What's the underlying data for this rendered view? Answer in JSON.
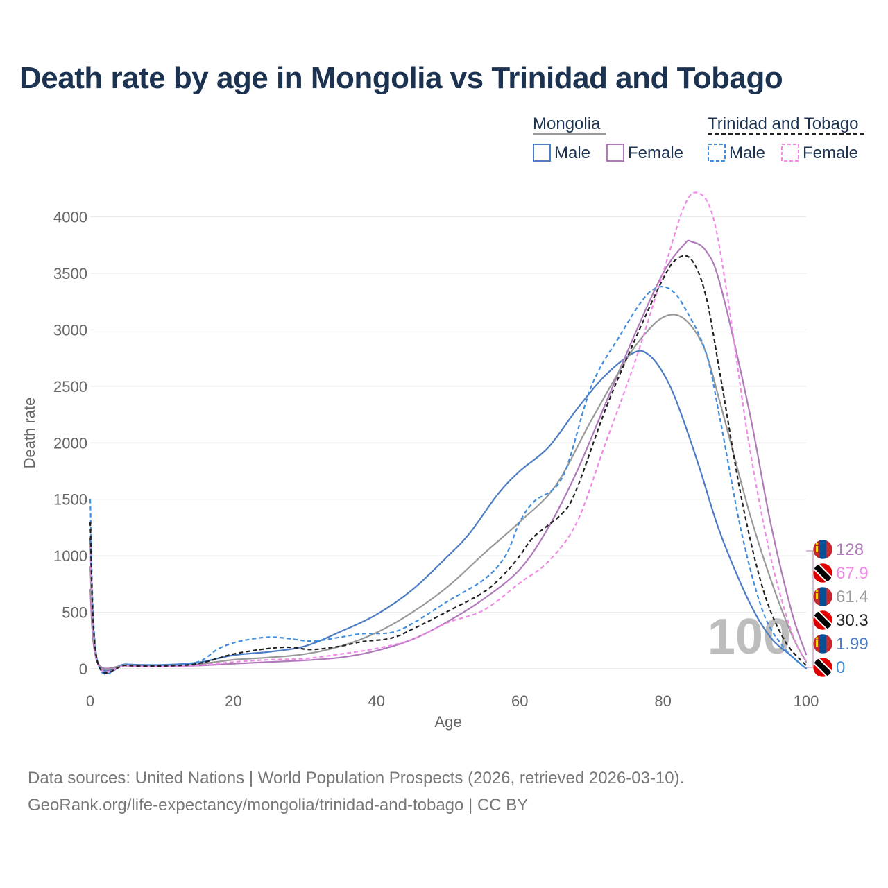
{
  "title": "Death rate by age in Mongolia vs Trinidad and Tobago",
  "footer": {
    "line1": "Data sources: United Nations | World Population Prospects (2026, retrieved 2026-03-10).",
    "line2": "GeoRank.org/life-expectancy/mongolia/trinidad-and-tobago | CC BY"
  },
  "legend": {
    "groups": [
      {
        "name": "Mongolia",
        "style": "solid",
        "entries": [
          "Male",
          "Female"
        ]
      },
      {
        "name": "Trinidad and Tobago",
        "style": "dashed",
        "entries": [
          "Male",
          "Female"
        ]
      }
    ]
  },
  "chart_data": {
    "type": "line",
    "title": "Death rate by age in Mongolia vs Trinidad and Tobago",
    "xlabel": "Age",
    "ylabel": "Death rate",
    "xlim": [
      0,
      100
    ],
    "ylim": [
      0,
      4200
    ],
    "xticks": [
      0,
      20,
      40,
      60,
      80,
      100
    ],
    "yticks": [
      0,
      500,
      1000,
      1500,
      2000,
      2500,
      3000,
      3500,
      4000
    ],
    "grid": true,
    "watermark": "100",
    "series": [
      {
        "name": "Mongolia Male",
        "country": "Mongolia",
        "sex": "Male",
        "color": "#4c7cc4",
        "dash": false,
        "width": 2.2,
        "points": [
          [
            0,
            1150
          ],
          [
            1,
            70
          ],
          [
            5,
            40
          ],
          [
            10,
            35
          ],
          [
            15,
            55
          ],
          [
            20,
            120
          ],
          [
            25,
            150
          ],
          [
            30,
            200
          ],
          [
            35,
            330
          ],
          [
            40,
            480
          ],
          [
            45,
            700
          ],
          [
            50,
            1000
          ],
          [
            53,
            1200
          ],
          [
            57,
            1550
          ],
          [
            60,
            1750
          ],
          [
            64,
            1960
          ],
          [
            68,
            2300
          ],
          [
            72,
            2600
          ],
          [
            76,
            2800
          ],
          [
            78,
            2780
          ],
          [
            80,
            2620
          ],
          [
            82,
            2350
          ],
          [
            85,
            1800
          ],
          [
            88,
            1200
          ],
          [
            92,
            600
          ],
          [
            95,
            280
          ],
          [
            98,
            110
          ],
          [
            100,
            1.99
          ]
        ]
      },
      {
        "name": "Mongolia Female",
        "country": "Mongolia",
        "sex": "Female",
        "color": "#b07aba",
        "dash": false,
        "width": 2.2,
        "points": [
          [
            0,
            700
          ],
          [
            1,
            60
          ],
          [
            5,
            28
          ],
          [
            10,
            22
          ],
          [
            15,
            28
          ],
          [
            20,
            45
          ],
          [
            25,
            60
          ],
          [
            30,
            75
          ],
          [
            35,
            100
          ],
          [
            40,
            160
          ],
          [
            45,
            260
          ],
          [
            50,
            420
          ],
          [
            55,
            620
          ],
          [
            60,
            880
          ],
          [
            64,
            1250
          ],
          [
            68,
            1750
          ],
          [
            72,
            2350
          ],
          [
            76,
            2950
          ],
          [
            80,
            3500
          ],
          [
            83,
            3760
          ],
          [
            84,
            3780
          ],
          [
            86,
            3700
          ],
          [
            88,
            3400
          ],
          [
            92,
            2300
          ],
          [
            95,
            1300
          ],
          [
            98,
            500
          ],
          [
            100,
            128
          ]
        ]
      },
      {
        "name": "Mongolia Total",
        "country": "Mongolia",
        "sex": "Total",
        "color": "#999999",
        "dash": false,
        "width": 2.2,
        "points": [
          [
            0,
            900
          ],
          [
            1,
            65
          ],
          [
            5,
            33
          ],
          [
            10,
            28
          ],
          [
            15,
            40
          ],
          [
            20,
            80
          ],
          [
            25,
            100
          ],
          [
            30,
            130
          ],
          [
            35,
            200
          ],
          [
            40,
            320
          ],
          [
            45,
            500
          ],
          [
            50,
            730
          ],
          [
            55,
            1020
          ],
          [
            60,
            1300
          ],
          [
            65,
            1620
          ],
          [
            70,
            2200
          ],
          [
            75,
            2750
          ],
          [
            78,
            3000
          ],
          [
            80,
            3110
          ],
          [
            82,
            3130
          ],
          [
            84,
            3030
          ],
          [
            86,
            2800
          ],
          [
            88,
            2350
          ],
          [
            92,
            1400
          ],
          [
            95,
            800
          ],
          [
            98,
            300
          ],
          [
            100,
            61.4
          ]
        ]
      },
      {
        "name": "Trinidad and Tobago Male",
        "country": "Trinidad and Tobago",
        "sex": "Male",
        "color": "#3f8ee0",
        "dash": true,
        "width": 2.2,
        "points": [
          [
            0,
            1500
          ],
          [
            1,
            70
          ],
          [
            5,
            35
          ],
          [
            10,
            30
          ],
          [
            15,
            60
          ],
          [
            18,
            180
          ],
          [
            21,
            245
          ],
          [
            25,
            280
          ],
          [
            28,
            265
          ],
          [
            31,
            245
          ],
          [
            35,
            280
          ],
          [
            38,
            310
          ],
          [
            42,
            320
          ],
          [
            45,
            400
          ],
          [
            50,
            600
          ],
          [
            55,
            790
          ],
          [
            58,
            1000
          ],
          [
            60,
            1300
          ],
          [
            62,
            1480
          ],
          [
            66,
            1700
          ],
          [
            70,
            2500
          ],
          [
            74,
            2950
          ],
          [
            77,
            3250
          ],
          [
            79,
            3370
          ],
          [
            81,
            3360
          ],
          [
            83,
            3200
          ],
          [
            86,
            2800
          ],
          [
            88,
            2200
          ],
          [
            91,
            1200
          ],
          [
            94,
            500
          ],
          [
            97,
            180
          ],
          [
            100,
            0
          ]
        ]
      },
      {
        "name": "Trinidad and Tobago Female",
        "country": "Trinidad and Tobago",
        "sex": "Female",
        "color": "#f38ae8",
        "dash": true,
        "width": 2.2,
        "points": [
          [
            0,
            1100
          ],
          [
            1,
            60
          ],
          [
            5,
            25
          ],
          [
            10,
            20
          ],
          [
            15,
            30
          ],
          [
            20,
            60
          ],
          [
            25,
            80
          ],
          [
            30,
            90
          ],
          [
            35,
            130
          ],
          [
            40,
            180
          ],
          [
            45,
            260
          ],
          [
            50,
            410
          ],
          [
            55,
            520
          ],
          [
            60,
            760
          ],
          [
            64,
            950
          ],
          [
            68,
            1300
          ],
          [
            72,
            2000
          ],
          [
            76,
            2700
          ],
          [
            80,
            3500
          ],
          [
            83,
            4100
          ],
          [
            85,
            4210
          ],
          [
            87,
            4000
          ],
          [
            89,
            3300
          ],
          [
            92,
            2000
          ],
          [
            95,
            1000
          ],
          [
            98,
            320
          ],
          [
            100,
            67.9
          ]
        ]
      },
      {
        "name": "Trinidad and Tobago Total",
        "country": "Trinidad and Tobago",
        "sex": "Total",
        "color": "#222222",
        "dash": true,
        "width": 2.2,
        "points": [
          [
            0,
            1300
          ],
          [
            1,
            65
          ],
          [
            5,
            30
          ],
          [
            10,
            25
          ],
          [
            15,
            45
          ],
          [
            20,
            130
          ],
          [
            25,
            180
          ],
          [
            28,
            190
          ],
          [
            31,
            170
          ],
          [
            35,
            200
          ],
          [
            38,
            240
          ],
          [
            42,
            270
          ],
          [
            45,
            350
          ],
          [
            50,
            510
          ],
          [
            55,
            680
          ],
          [
            58,
            850
          ],
          [
            60,
            1000
          ],
          [
            62,
            1170
          ],
          [
            66,
            1380
          ],
          [
            68,
            1600
          ],
          [
            72,
            2300
          ],
          [
            76,
            2900
          ],
          [
            80,
            3450
          ],
          [
            82,
            3630
          ],
          [
            84,
            3620
          ],
          [
            86,
            3300
          ],
          [
            88,
            2600
          ],
          [
            91,
            1500
          ],
          [
            94,
            700
          ],
          [
            97,
            250
          ],
          [
            100,
            30.3
          ]
        ]
      }
    ],
    "end_labels": [
      {
        "text": "128",
        "country": "Mongolia",
        "color": "#b07aba"
      },
      {
        "text": "67.9",
        "country": "Trinidad and Tobago",
        "color": "#f38ae8"
      },
      {
        "text": "61.4",
        "country": "Mongolia",
        "color": "#999999"
      },
      {
        "text": "30.3",
        "country": "Trinidad and Tobago",
        "color": "#222222"
      },
      {
        "text": "1.99",
        "country": "Mongolia",
        "color": "#4c7cc4"
      },
      {
        "text": "0",
        "country": "Trinidad and Tobago",
        "color": "#3f8ee0"
      }
    ]
  }
}
